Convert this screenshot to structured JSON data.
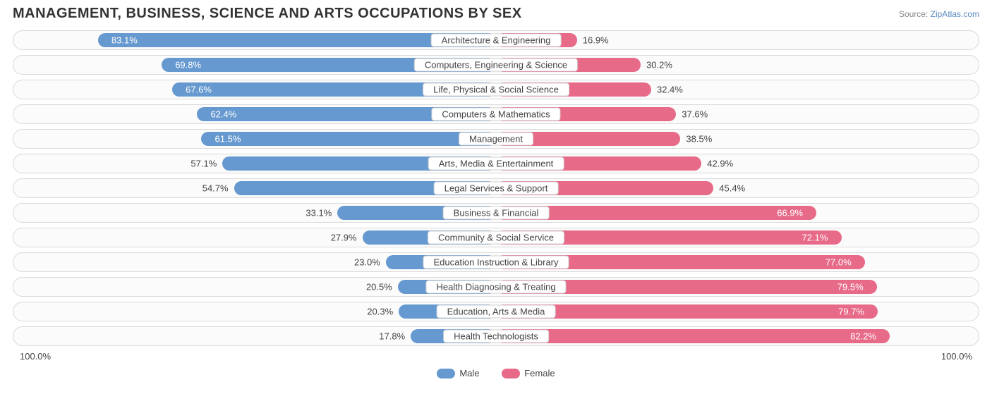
{
  "header": {
    "title": "MANAGEMENT, BUSINESS, SCIENCE AND ARTS OCCUPATIONS BY SEX",
    "source_prefix": "Source: ",
    "source_name": "ZipAtlas.com"
  },
  "chart": {
    "type": "diverging-bar",
    "male_color": "#6699cf",
    "female_color": "#e76a89",
    "track_border_color": "#d9d9d9",
    "track_bg_color": "#fbfbfb",
    "text_color": "#444444",
    "inside_text_color": "#ffffff",
    "label_fontsize": 13,
    "title_fontsize": 20,
    "rows": [
      {
        "category": "Architecture & Engineering",
        "male": 83.1,
        "female": 16.9
      },
      {
        "category": "Computers, Engineering & Science",
        "male": 69.8,
        "female": 30.2
      },
      {
        "category": "Life, Physical & Social Science",
        "male": 67.6,
        "female": 32.4
      },
      {
        "category": "Computers & Mathematics",
        "male": 62.4,
        "female": 37.6
      },
      {
        "category": "Management",
        "male": 61.5,
        "female": 38.5
      },
      {
        "category": "Arts, Media & Entertainment",
        "male": 57.1,
        "female": 42.9
      },
      {
        "category": "Legal Services & Support",
        "male": 54.7,
        "female": 45.4
      },
      {
        "category": "Business & Financial",
        "male": 33.1,
        "female": 66.9
      },
      {
        "category": "Community & Social Service",
        "male": 27.9,
        "female": 72.1
      },
      {
        "category": "Education Instruction & Library",
        "male": 23.0,
        "female": 77.0
      },
      {
        "category": "Health Diagnosing & Treating",
        "male": 20.5,
        "female": 79.5
      },
      {
        "category": "Education, Arts & Media",
        "male": 20.3,
        "female": 79.7
      },
      {
        "category": "Health Technologists",
        "male": 17.8,
        "female": 82.2
      }
    ],
    "axis": {
      "left": "100.0%",
      "right": "100.0%"
    },
    "legend": {
      "male": "Male",
      "female": "Female"
    },
    "inside_threshold": 60
  }
}
